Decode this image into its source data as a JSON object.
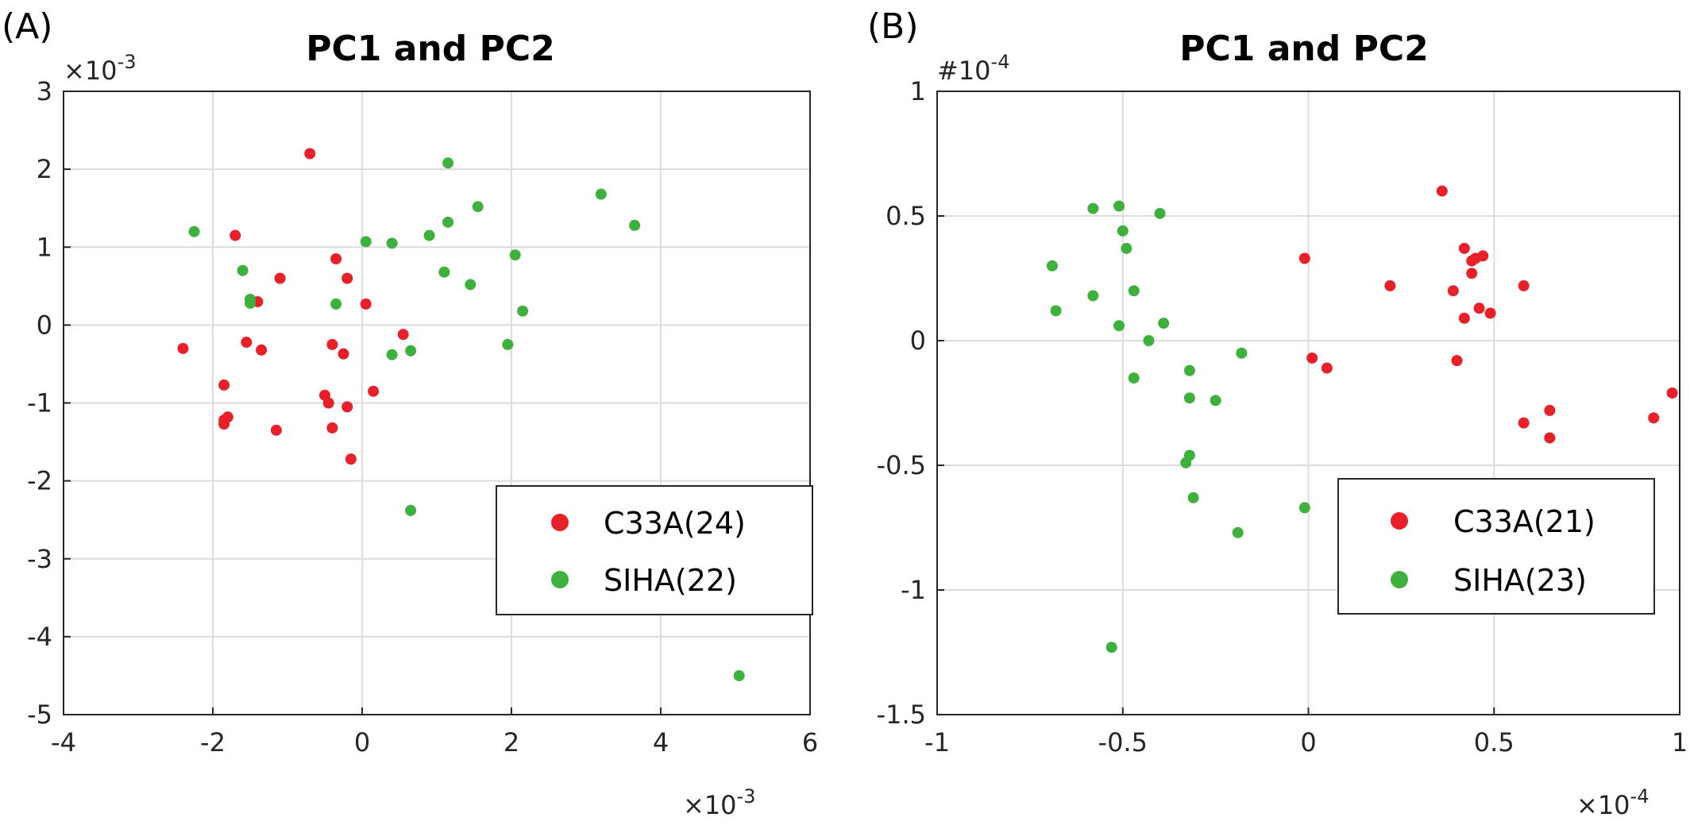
{
  "chart_data": [
    {
      "type": "scatter",
      "panel_label": "(A)",
      "title": "PC1 and PC2",
      "xlim": [
        -4,
        6
      ],
      "ylim": [
        -5,
        3
      ],
      "xticks": [
        -4,
        -2,
        0,
        2,
        4,
        6
      ],
      "yticks": [
        -5,
        -4,
        -3,
        -2,
        -1,
        0,
        1,
        2,
        3
      ],
      "x_exponent": "×10-3",
      "y_exponent": "×10-3",
      "grid": true,
      "legend_position": "lower-right",
      "series": [
        {
          "name": "C33A(24)",
          "color": "#e8202a",
          "points": [
            [
              -0.7,
              2.2
            ],
            [
              -1.7,
              1.15
            ],
            [
              -1.1,
              0.6
            ],
            [
              -1.4,
              0.3
            ],
            [
              -1.55,
              -0.22
            ],
            [
              -1.35,
              -0.32
            ],
            [
              -2.4,
              -0.3
            ],
            [
              -1.85,
              -0.77
            ],
            [
              -1.8,
              -1.18
            ],
            [
              -1.85,
              -1.22
            ],
            [
              -1.85,
              -1.27
            ],
            [
              -1.15,
              -1.35
            ],
            [
              -0.35,
              0.85
            ],
            [
              -0.2,
              0.6
            ],
            [
              0.05,
              0.27
            ],
            [
              -0.4,
              -0.25
            ],
            [
              -0.25,
              -0.37
            ],
            [
              0.55,
              -0.12
            ],
            [
              0.15,
              -0.85
            ],
            [
              -0.5,
              -0.9
            ],
            [
              -0.45,
              -1.0
            ],
            [
              -0.2,
              -1.05
            ],
            [
              -0.4,
              -1.32
            ],
            [
              -0.15,
              -1.72
            ]
          ]
        },
        {
          "name": "SIHA(22)",
          "color": "#3eb03e",
          "points": [
            [
              -2.25,
              1.2
            ],
            [
              -1.6,
              0.7
            ],
            [
              -1.5,
              0.33
            ],
            [
              -1.5,
              0.28
            ],
            [
              -0.35,
              0.27
            ],
            [
              0.05,
              1.07
            ],
            [
              0.4,
              1.05
            ],
            [
              0.9,
              1.15
            ],
            [
              1.15,
              2.08
            ],
            [
              1.15,
              1.32
            ],
            [
              1.55,
              1.52
            ],
            [
              1.1,
              0.68
            ],
            [
              1.45,
              0.52
            ],
            [
              2.05,
              0.9
            ],
            [
              2.15,
              0.18
            ],
            [
              1.95,
              -0.25
            ],
            [
              0.4,
              -0.38
            ],
            [
              0.65,
              -0.33
            ],
            [
              0.65,
              -2.38
            ],
            [
              3.2,
              1.68
            ],
            [
              3.65,
              1.28
            ],
            [
              5.05,
              -4.5
            ]
          ]
        }
      ]
    },
    {
      "type": "scatter",
      "panel_label": "(B)",
      "title": "PC1 and PC2",
      "xlim": [
        -1,
        1
      ],
      "ylim": [
        -1.5,
        1
      ],
      "xticks": [
        -1,
        -0.5,
        0,
        0.5,
        1
      ],
      "yticks": [
        -1.5,
        -1,
        -0.5,
        0,
        0.5,
        1
      ],
      "x_exponent": "×10-4",
      "y_exponent": "#10-4",
      "grid": true,
      "legend_position": "lower-right",
      "series": [
        {
          "name": "C33A(21)",
          "color": "#e8202a",
          "points": [
            [
              0.36,
              0.6
            ],
            [
              -0.01,
              0.33
            ],
            [
              0.22,
              0.22
            ],
            [
              0.39,
              0.2
            ],
            [
              0.42,
              0.37
            ],
            [
              0.44,
              0.27
            ],
            [
              0.44,
              0.32
            ],
            [
              0.45,
              0.33
            ],
            [
              0.47,
              0.34
            ],
            [
              0.46,
              0.13
            ],
            [
              0.42,
              0.09
            ],
            [
              0.49,
              0.11
            ],
            [
              0.58,
              0.22
            ],
            [
              0.01,
              -0.07
            ],
            [
              0.05,
              -0.11
            ],
            [
              0.4,
              -0.08
            ],
            [
              0.58,
              -0.33
            ],
            [
              0.65,
              -0.28
            ],
            [
              0.65,
              -0.39
            ],
            [
              0.93,
              -0.31
            ],
            [
              0.98,
              -0.21
            ]
          ]
        },
        {
          "name": "SIHA(23)",
          "color": "#3eb03e",
          "points": [
            [
              -0.58,
              0.53
            ],
            [
              -0.51,
              0.54
            ],
            [
              -0.4,
              0.51
            ],
            [
              -0.5,
              0.44
            ],
            [
              -0.49,
              0.37
            ],
            [
              -0.69,
              0.3
            ],
            [
              -0.58,
              0.18
            ],
            [
              -0.47,
              0.2
            ],
            [
              -0.68,
              0.12
            ],
            [
              -0.51,
              0.06
            ],
            [
              -0.39,
              0.07
            ],
            [
              -0.43,
              0.0
            ],
            [
              -0.47,
              -0.15
            ],
            [
              -0.32,
              -0.12
            ],
            [
              -0.18,
              -0.05
            ],
            [
              -0.32,
              -0.23
            ],
            [
              -0.25,
              -0.24
            ],
            [
              -0.32,
              -0.46
            ],
            [
              -0.33,
              -0.49
            ],
            [
              -0.31,
              -0.63
            ],
            [
              -0.19,
              -0.77
            ],
            [
              -0.01,
              -0.67
            ],
            [
              -0.53,
              -1.23
            ]
          ]
        }
      ]
    }
  ]
}
